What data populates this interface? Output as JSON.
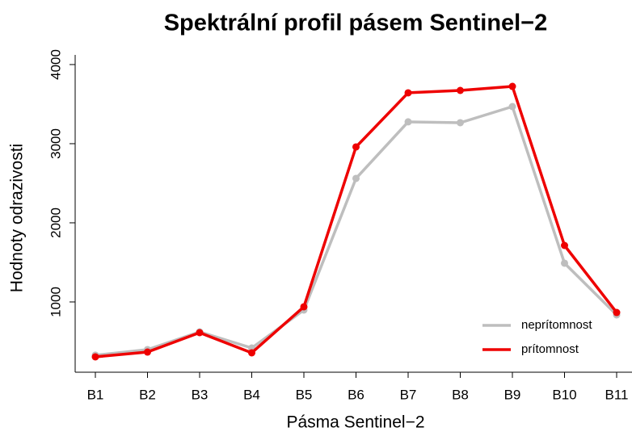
{
  "chart_data": {
    "type": "line",
    "title": "Spektrální profil pásem Sentinel−2",
    "x_label": "Pásma Sentinel−2",
    "y_label": "Hodnoty odrazivosti",
    "categories": [
      "B1",
      "B2",
      "B3",
      "B4",
      "B5",
      "B6",
      "B7",
      "B8",
      "B9",
      "B10",
      "B11"
    ],
    "series": [
      {
        "name": "neprítomnost",
        "color": "#bebebe",
        "values": [
          327,
          398,
          622,
          418,
          898,
          2561,
          3276,
          3265,
          3469,
          1490,
          837
        ]
      },
      {
        "name": "prítomnost",
        "color": "#ee0000",
        "values": [
          306,
          367,
          612,
          357,
          939,
          2959,
          3643,
          3673,
          3724,
          1714,
          867
        ]
      }
    ],
    "ylim": [
      112,
      4122
    ],
    "yticks": [
      1000,
      2000,
      3000,
      4000
    ],
    "legend": "bottom-right"
  }
}
